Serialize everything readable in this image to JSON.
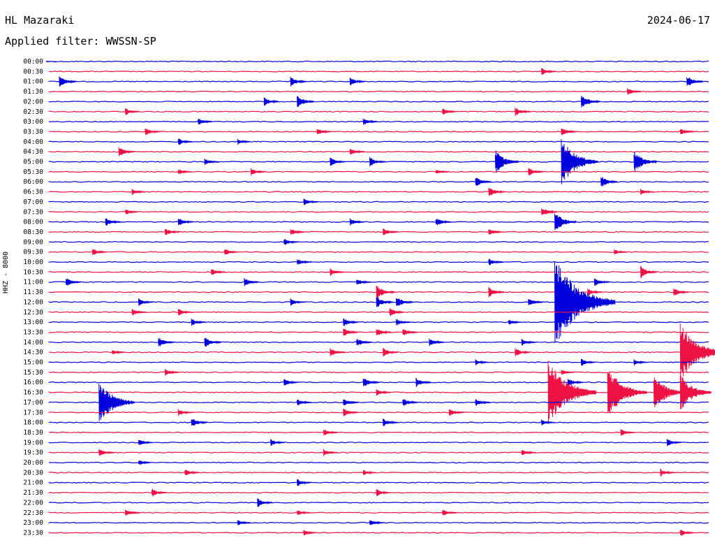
{
  "header": {
    "station": "HL Mazaraki",
    "date": "2024-06-17",
    "filter_label": "Applied filter:",
    "filter_value": "WWSSN-SP"
  },
  "channel_label": "HHZ - 8000",
  "colors": {
    "trace_a": "#0000dd",
    "trace_b": "#ee1144",
    "background": "#ffffff",
    "text": "#000000"
  },
  "chart_data": {
    "type": "line",
    "title": "HL Mazaraki",
    "ylabel": "HHZ - 8000",
    "rows": [
      "00:00",
      "00:30",
      "01:00",
      "01:30",
      "02:00",
      "02:30",
      "03:00",
      "03:30",
      "04:00",
      "04:30",
      "05:00",
      "05:30",
      "06:00",
      "06:30",
      "07:00",
      "07:30",
      "08:00",
      "08:30",
      "09:00",
      "09:30",
      "10:00",
      "10:30",
      "11:00",
      "11:30",
      "12:00",
      "12:30",
      "13:00",
      "13:30",
      "14:00",
      "14:30",
      "15:00",
      "15:30",
      "16:00",
      "16:30",
      "17:00",
      "17:30",
      "18:00",
      "18:30",
      "19:00",
      "19:30",
      "20:00",
      "20:30",
      "21:00",
      "21:30",
      "22:00",
      "22:30",
      "23:00",
      "23:30"
    ],
    "row_minutes": 30,
    "series_colors": [
      "#0000dd",
      "#ee1144"
    ],
    "events": [
      {
        "row": 0,
        "t": 0.0,
        "amp": 0.05
      },
      {
        "row": 1,
        "t": 0.75,
        "amp": 0.5
      },
      {
        "row": 2,
        "t": 0.02,
        "amp": 0.8
      },
      {
        "row": 2,
        "t": 0.37,
        "amp": 0.7
      },
      {
        "row": 2,
        "t": 0.46,
        "amp": 0.6
      },
      {
        "row": 2,
        "t": 0.97,
        "amp": 0.8
      },
      {
        "row": 3,
        "t": 0.88,
        "amp": 0.5
      },
      {
        "row": 4,
        "t": 0.33,
        "amp": 0.6
      },
      {
        "row": 4,
        "t": 0.38,
        "amp": 0.9
      },
      {
        "row": 4,
        "t": 0.81,
        "amp": 1.0
      },
      {
        "row": 5,
        "t": 0.12,
        "amp": 0.5
      },
      {
        "row": 5,
        "t": 0.6,
        "amp": 0.5
      },
      {
        "row": 5,
        "t": 0.71,
        "amp": 0.6
      },
      {
        "row": 6,
        "t": 0.23,
        "amp": 0.5
      },
      {
        "row": 6,
        "t": 0.48,
        "amp": 0.5
      },
      {
        "row": 7,
        "t": 0.15,
        "amp": 0.6
      },
      {
        "row": 7,
        "t": 0.41,
        "amp": 0.5
      },
      {
        "row": 7,
        "t": 0.78,
        "amp": 0.6
      },
      {
        "row": 7,
        "t": 0.96,
        "amp": 0.5
      },
      {
        "row": 8,
        "t": 0.2,
        "amp": 0.5
      },
      {
        "row": 8,
        "t": 0.29,
        "amp": 0.4
      },
      {
        "row": 9,
        "t": 0.11,
        "amp": 0.7
      },
      {
        "row": 9,
        "t": 0.46,
        "amp": 0.5
      },
      {
        "row": 10,
        "t": 0.24,
        "amp": 0.5
      },
      {
        "row": 10,
        "t": 0.43,
        "amp": 0.6
      },
      {
        "row": 10,
        "t": 0.49,
        "amp": 0.7
      },
      {
        "row": 10,
        "t": 0.68,
        "amp": 1.6
      },
      {
        "row": 10,
        "t": 0.78,
        "amp": 3.2
      },
      {
        "row": 10,
        "t": 0.89,
        "amp": 1.5
      },
      {
        "row": 11,
        "t": 0.2,
        "amp": 0.4
      },
      {
        "row": 11,
        "t": 0.31,
        "amp": 0.5
      },
      {
        "row": 11,
        "t": 0.59,
        "amp": 0.4
      },
      {
        "row": 11,
        "t": 0.73,
        "amp": 0.6
      },
      {
        "row": 12,
        "t": 0.65,
        "amp": 0.7
      },
      {
        "row": 12,
        "t": 0.84,
        "amp": 0.8
      },
      {
        "row": 13,
        "t": 0.13,
        "amp": 0.4
      },
      {
        "row": 13,
        "t": 0.67,
        "amp": 0.7
      },
      {
        "row": 13,
        "t": 0.9,
        "amp": 0.4
      },
      {
        "row": 14,
        "t": 0.39,
        "amp": 0.5
      },
      {
        "row": 15,
        "t": 0.12,
        "amp": 0.4
      },
      {
        "row": 15,
        "t": 0.75,
        "amp": 0.7
      },
      {
        "row": 16,
        "t": 0.09,
        "amp": 0.6
      },
      {
        "row": 16,
        "t": 0.2,
        "amp": 0.6
      },
      {
        "row": 16,
        "t": 0.46,
        "amp": 0.5
      },
      {
        "row": 16,
        "t": 0.59,
        "amp": 0.6
      },
      {
        "row": 16,
        "t": 0.77,
        "amp": 1.4
      },
      {
        "row": 17,
        "t": 0.18,
        "amp": 0.6
      },
      {
        "row": 17,
        "t": 0.37,
        "amp": 0.5
      },
      {
        "row": 17,
        "t": 0.51,
        "amp": 0.6
      },
      {
        "row": 17,
        "t": 0.67,
        "amp": 0.5
      },
      {
        "row": 18,
        "t": 0.36,
        "amp": 0.5
      },
      {
        "row": 19,
        "t": 0.07,
        "amp": 0.5
      },
      {
        "row": 19,
        "t": 0.27,
        "amp": 0.5
      },
      {
        "row": 19,
        "t": 0.86,
        "amp": 0.4
      },
      {
        "row": 20,
        "t": 0.38,
        "amp": 0.5
      },
      {
        "row": 20,
        "t": 0.67,
        "amp": 0.5
      },
      {
        "row": 21,
        "t": 0.25,
        "amp": 0.5
      },
      {
        "row": 21,
        "t": 0.43,
        "amp": 0.5
      },
      {
        "row": 21,
        "t": 0.9,
        "amp": 0.8
      },
      {
        "row": 22,
        "t": 0.03,
        "amp": 0.6
      },
      {
        "row": 22,
        "t": 0.3,
        "amp": 0.6
      },
      {
        "row": 22,
        "t": 0.47,
        "amp": 0.5
      },
      {
        "row": 22,
        "t": 0.83,
        "amp": 0.6
      },
      {
        "row": 23,
        "t": 0.5,
        "amp": 1.0
      },
      {
        "row": 23,
        "t": 0.67,
        "amp": 0.7
      },
      {
        "row": 23,
        "t": 0.82,
        "amp": 0.5
      },
      {
        "row": 23,
        "t": 0.95,
        "amp": 0.6
      },
      {
        "row": 24,
        "t": 0.14,
        "amp": 0.5
      },
      {
        "row": 24,
        "t": 0.37,
        "amp": 0.5
      },
      {
        "row": 24,
        "t": 0.5,
        "amp": 0.8
      },
      {
        "row": 24,
        "t": 0.53,
        "amp": 0.8
      },
      {
        "row": 24,
        "t": 0.73,
        "amp": 0.6
      },
      {
        "row": 24,
        "t": 0.77,
        "amp": 6.0
      },
      {
        "row": 25,
        "t": 0.13,
        "amp": 0.5
      },
      {
        "row": 25,
        "t": 0.2,
        "amp": 0.5
      },
      {
        "row": 25,
        "t": 0.52,
        "amp": 0.6
      },
      {
        "row": 26,
        "t": 0.22,
        "amp": 0.5
      },
      {
        "row": 26,
        "t": 0.45,
        "amp": 0.6
      },
      {
        "row": 26,
        "t": 0.53,
        "amp": 0.5
      },
      {
        "row": 26,
        "t": 0.7,
        "amp": 0.4
      },
      {
        "row": 27,
        "t": 0.45,
        "amp": 0.6
      },
      {
        "row": 27,
        "t": 0.5,
        "amp": 0.6
      },
      {
        "row": 27,
        "t": 0.54,
        "amp": 0.6
      },
      {
        "row": 28,
        "t": 0.17,
        "amp": 0.7
      },
      {
        "row": 28,
        "t": 0.24,
        "amp": 0.8
      },
      {
        "row": 28,
        "t": 0.47,
        "amp": 0.6
      },
      {
        "row": 28,
        "t": 0.58,
        "amp": 0.6
      },
      {
        "row": 28,
        "t": 0.72,
        "amp": 0.5
      },
      {
        "row": 29,
        "t": 0.1,
        "amp": 0.4
      },
      {
        "row": 29,
        "t": 0.43,
        "amp": 0.6
      },
      {
        "row": 29,
        "t": 0.51,
        "amp": 0.6
      },
      {
        "row": 29,
        "t": 0.71,
        "amp": 0.6
      },
      {
        "row": 29,
        "t": 0.96,
        "amp": 4.0
      },
      {
        "row": 30,
        "t": 0.65,
        "amp": 0.4
      },
      {
        "row": 30,
        "t": 0.81,
        "amp": 0.5
      },
      {
        "row": 30,
        "t": 0.89,
        "amp": 0.4
      },
      {
        "row": 31,
        "t": 0.18,
        "amp": 0.5
      },
      {
        "row": 31,
        "t": 0.78,
        "amp": 0.4
      },
      {
        "row": 32,
        "t": 0.36,
        "amp": 0.5
      },
      {
        "row": 32,
        "t": 0.48,
        "amp": 0.7
      },
      {
        "row": 32,
        "t": 0.56,
        "amp": 0.6
      },
      {
        "row": 32,
        "t": 0.79,
        "amp": 0.6
      },
      {
        "row": 33,
        "t": 0.5,
        "amp": 0.5
      },
      {
        "row": 33,
        "t": 0.76,
        "amp": 4.5
      },
      {
        "row": 33,
        "t": 0.85,
        "amp": 3.5
      },
      {
        "row": 33,
        "t": 0.92,
        "amp": 2.5
      },
      {
        "row": 33,
        "t": 0.96,
        "amp": 2.5
      },
      {
        "row": 34,
        "t": 0.08,
        "amp": 3.0
      },
      {
        "row": 34,
        "t": 0.38,
        "amp": 0.5
      },
      {
        "row": 34,
        "t": 0.45,
        "amp": 0.6
      },
      {
        "row": 34,
        "t": 0.54,
        "amp": 0.6
      },
      {
        "row": 34,
        "t": 0.65,
        "amp": 0.6
      },
      {
        "row": 35,
        "t": 0.2,
        "amp": 0.5
      },
      {
        "row": 35,
        "t": 0.45,
        "amp": 0.6
      },
      {
        "row": 35,
        "t": 0.61,
        "amp": 0.6
      },
      {
        "row": 36,
        "t": 0.22,
        "amp": 0.7
      },
      {
        "row": 36,
        "t": 0.51,
        "amp": 0.6
      },
      {
        "row": 36,
        "t": 0.75,
        "amp": 0.4
      },
      {
        "row": 37,
        "t": 0.42,
        "amp": 0.5
      },
      {
        "row": 37,
        "t": 0.87,
        "amp": 0.5
      },
      {
        "row": 38,
        "t": 0.14,
        "amp": 0.5
      },
      {
        "row": 38,
        "t": 0.34,
        "amp": 0.5
      },
      {
        "row": 38,
        "t": 0.94,
        "amp": 0.5
      },
      {
        "row": 39,
        "t": 0.08,
        "amp": 0.6
      },
      {
        "row": 39,
        "t": 0.42,
        "amp": 0.5
      },
      {
        "row": 39,
        "t": 0.72,
        "amp": 0.5
      },
      {
        "row": 40,
        "t": 0.14,
        "amp": 0.4
      },
      {
        "row": 41,
        "t": 0.21,
        "amp": 0.5
      },
      {
        "row": 41,
        "t": 0.48,
        "amp": 0.4
      },
      {
        "row": 41,
        "t": 0.93,
        "amp": 0.5
      },
      {
        "row": 42,
        "t": 0.38,
        "amp": 0.5
      },
      {
        "row": 43,
        "t": 0.16,
        "amp": 0.6
      },
      {
        "row": 43,
        "t": 0.5,
        "amp": 0.5
      },
      {
        "row": 44,
        "t": 0.32,
        "amp": 0.6
      },
      {
        "row": 45,
        "t": 0.12,
        "amp": 0.5
      },
      {
        "row": 45,
        "t": 0.38,
        "amp": 0.4
      },
      {
        "row": 45,
        "t": 0.6,
        "amp": 0.5
      },
      {
        "row": 46,
        "t": 0.29,
        "amp": 0.4
      },
      {
        "row": 46,
        "t": 0.49,
        "amp": 0.5
      },
      {
        "row": 47,
        "t": 0.39,
        "amp": 0.4
      },
      {
        "row": 47,
        "t": 0.96,
        "amp": 0.5
      }
    ]
  }
}
